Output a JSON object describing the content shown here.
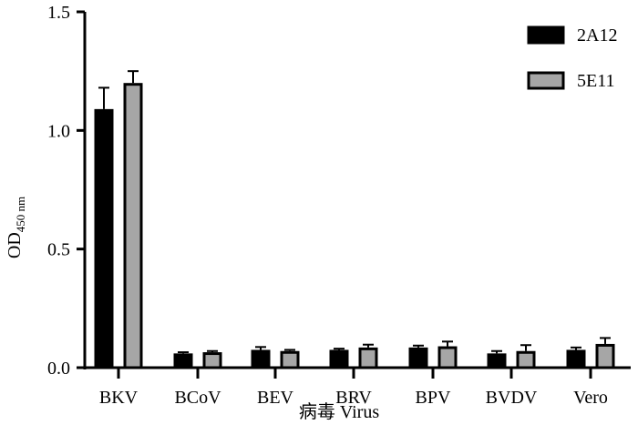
{
  "chart_data": {
    "type": "bar",
    "title": "",
    "xlabel": "病毒 Virus",
    "ylabel": "OD",
    "ylabel_sub": "450 nm",
    "ylim": [
      0,
      1.5
    ],
    "yticks": [
      "0.0",
      "0.5",
      "1.0",
      "1.5"
    ],
    "ytick_values": [
      0,
      0.5,
      1.0,
      1.5
    ],
    "categories": [
      "BKV",
      "BCoV",
      "BEV",
      "BRV",
      "BPV",
      "BVDV",
      "Vero"
    ],
    "series": [
      {
        "name": "2A12",
        "color": "#000000",
        "values": [
          1.09,
          0.06,
          0.075,
          0.075,
          0.085,
          0.06,
          0.075
        ],
        "errors": [
          0.09,
          0.005,
          0.012,
          0.005,
          0.008,
          0.01,
          0.01
        ]
      },
      {
        "name": "5E11",
        "color": "#a6a6a6",
        "values": [
          1.2,
          0.065,
          0.07,
          0.085,
          0.09,
          0.07,
          0.1
        ],
        "errors": [
          0.05,
          0.005,
          0.005,
          0.012,
          0.02,
          0.025,
          0.025
        ]
      }
    ],
    "legend_position": "top-right",
    "grid": false
  }
}
